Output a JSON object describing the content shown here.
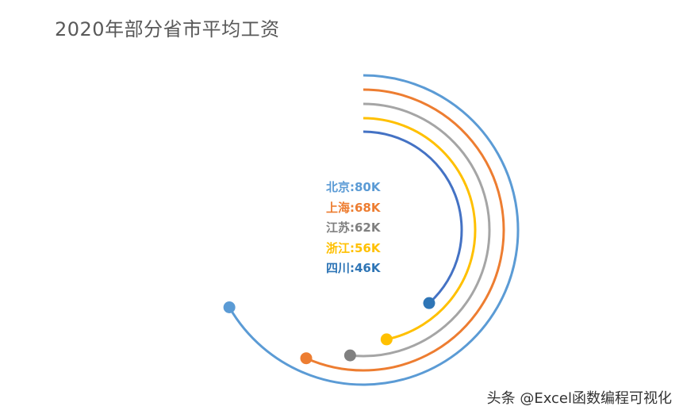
{
  "title": "2020年部分省市平均工资",
  "watermark": "头条 @Excel函数编程可视化",
  "chart_data": {
    "type": "radial-bar",
    "title": "2020年部分省市平均工资",
    "scale_max": 120,
    "series": [
      {
        "name": "北京",
        "value": 80,
        "label": "北京:80K",
        "color": "#5B9BD5"
      },
      {
        "name": "上海",
        "value": 68,
        "label": "上海:68K",
        "color": "#ED7D31"
      },
      {
        "name": "江苏",
        "value": 62,
        "label": "江苏:62K",
        "color": "#808080"
      },
      {
        "name": "浙江",
        "value": 56,
        "label": "浙江:56K",
        "color": "#FFC000"
      },
      {
        "name": "四川",
        "value": 46,
        "label": "四川:46K",
        "color": "#2E75B6"
      }
    ],
    "arc_colors": [
      "#5B9BD5",
      "#ED7D31",
      "#A5A5A5",
      "#FFC000",
      "#4472C4"
    ],
    "dot_colors": [
      "#5B9BD5",
      "#ED7D31",
      "#808080",
      "#FFC000",
      "#2E75B6"
    ]
  }
}
